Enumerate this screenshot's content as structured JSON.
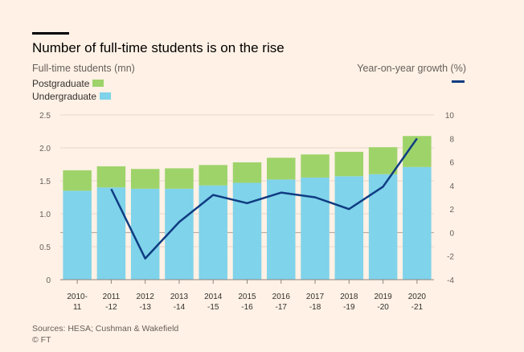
{
  "title": "Number of full-time students is on the rise",
  "source": "Sources: HESA; Cushman & Wakefield",
  "credit": "© FT",
  "colors": {
    "background": "#fff1e5",
    "postgraduate": "#9ed36a",
    "undergraduate": "#7fd3ea",
    "growth_line": "#0f3c82",
    "grid": "#e5d8cc",
    "axis": "#8c8580"
  },
  "chart_data": {
    "type": "bar+line",
    "left_axis_label": "Full-time students (mn)",
    "right_axis_label": "Year-on-year growth (%)",
    "categories": [
      [
        "2010-",
        "11"
      ],
      [
        "2011",
        "-12"
      ],
      [
        "2012",
        "-13"
      ],
      [
        "2013",
        "-14"
      ],
      [
        "2014",
        "-15"
      ],
      [
        "2015",
        "-16"
      ],
      [
        "2016",
        "-17"
      ],
      [
        "2017",
        "-18"
      ],
      [
        "2018",
        "-19"
      ],
      [
        "2019",
        "-20"
      ],
      [
        "2020",
        "-21"
      ]
    ],
    "stacked": true,
    "series": [
      {
        "name": "Undergraduate",
        "axis": "left",
        "kind": "bar",
        "values": [
          1.35,
          1.4,
          1.38,
          1.38,
          1.43,
          1.47,
          1.52,
          1.55,
          1.57,
          1.6,
          1.71
        ]
      },
      {
        "name": "Postgraduate",
        "axis": "left",
        "kind": "bar",
        "values": [
          0.31,
          0.32,
          0.3,
          0.31,
          0.31,
          0.31,
          0.33,
          0.35,
          0.37,
          0.41,
          0.47
        ]
      },
      {
        "name": "Year-on-year growth (%)",
        "axis": "right",
        "kind": "line",
        "values": [
          null,
          3.7,
          -2.2,
          0.9,
          3.2,
          2.5,
          3.4,
          3.0,
          2.0,
          3.9,
          8.0
        ]
      }
    ],
    "ylim_left": [
      0,
      2.5
    ],
    "yticks_left": [
      "0",
      "0.5",
      "1.0",
      "1.5",
      "2.0",
      "2.5"
    ],
    "ylim_right": [
      -4,
      10
    ],
    "yticks_right": [
      "-4",
      "-2",
      "0",
      "2",
      "4",
      "6",
      "8",
      "10"
    ],
    "grid": true,
    "legend": "top-left"
  }
}
